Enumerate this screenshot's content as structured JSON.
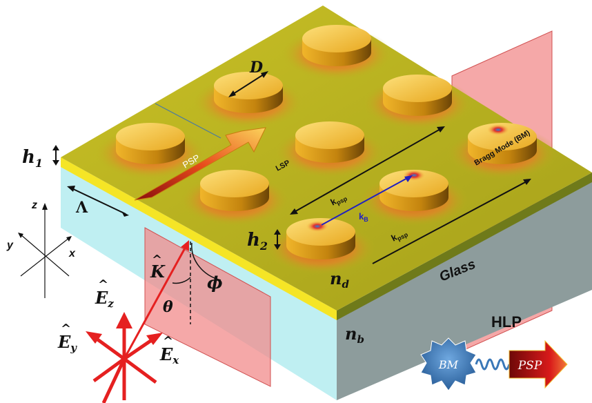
{
  "labels": {
    "D": "D",
    "h1": "h",
    "h1_sub": "1",
    "h2": "h",
    "h2_sub": "2",
    "Lambda": "Λ",
    "z": "z",
    "y": "y",
    "x": "x",
    "psp_arrow": "PSP",
    "lsp": "LSP",
    "bragg_mode": "Bragg Mode (BM)",
    "kpsp_top": "k",
    "kpsp_top_sub": "psp",
    "kB": "k",
    "kB_sub": "B",
    "kpsp_bottom": "k",
    "kpsp_bottom_sub": "psp",
    "glass": "Glass",
    "nd": "n",
    "nd_sub": "d",
    "nb": "n",
    "nb_sub": "b",
    "K_hat": "K",
    "theta": "θ",
    "phi": "ϕ",
    "Ez": "E",
    "Ez_sub": "z",
    "Ey": "E",
    "Ey_sub": "y",
    "Ex": "E",
    "Ex_sub": "x",
    "hlp": "HLP",
    "bm": "BM",
    "psp_badge": "PSP"
  },
  "colors": {
    "gold_surface": "#b8b31e",
    "gold_film": "#f2e52a",
    "substrate_top": "#bfeff2",
    "substrate_side": "#8a9a9a",
    "disk_top": "#f5c23a",
    "disk_side": "#b97c10",
    "plane": "#f28b8b",
    "field_arrows": "#e52020",
    "bm_badge": "#3a78b8",
    "psp_badge": "#c51818"
  }
}
